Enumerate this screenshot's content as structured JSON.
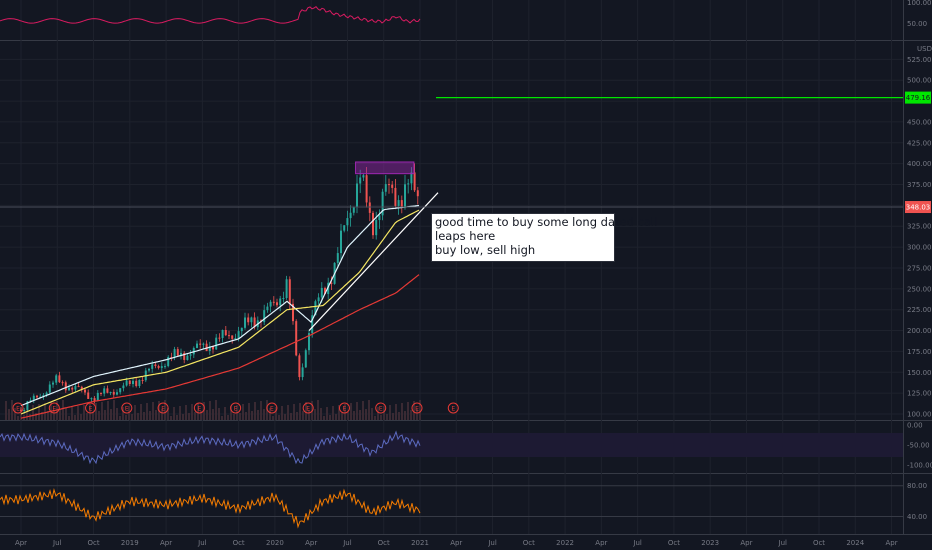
{
  "colors": {
    "background": "#131722",
    "grid": "#1e222d",
    "separator": "#363a45",
    "axis_text": "#787b86",
    "price_candle_up": "#26a69a",
    "price_candle_down": "#ef5350",
    "ma_fast": "#e1f5fe",
    "ma_mid": "#f5e663",
    "ma_slow": "#e53935",
    "trendline": "#ffffff",
    "target_line": "#00e600",
    "rect_zone": "#9c27b0",
    "pane_top": "#d81b60",
    "pane_williams": "#5c6bc0",
    "pane_rsi": "#f57c00",
    "earnings": "#e53935"
  },
  "annotation": {
    "lines": [
      "good time to buy some long dated call",
      "leaps here",
      "buy low, sell high"
    ]
  },
  "chart_data": [
    {
      "type": "line",
      "pane": "top-oscillator",
      "y_ticks": [
        "100.00",
        "50.00"
      ],
      "x": [
        "2020-03",
        "2020-04",
        "2020-05",
        "2020-06",
        "2020-07",
        "2020-08",
        "2020-09",
        "2020-10",
        "2020-11",
        "2020-12",
        "2021-01"
      ],
      "values": [
        82,
        96,
        90,
        78,
        72,
        66,
        60,
        58,
        72,
        58,
        62
      ]
    },
    {
      "type": "candlestick",
      "pane": "price",
      "currency": "USD",
      "y_ticks": [
        "525.00",
        "500.00",
        "475.00",
        "450.00",
        "425.00",
        "400.00",
        "375.00",
        "350.00",
        "325.00",
        "300.00",
        "275.00",
        "250.00",
        "225.00",
        "200.00",
        "175.00",
        "150.00",
        "125.00",
        "100.00"
      ],
      "ylim": [
        100,
        535
      ],
      "x_ticks": [
        "Apr",
        "Jul",
        "Oct",
        "2019",
        "Apr",
        "Jul",
        "Oct",
        "2020",
        "Apr",
        "Jul",
        "Oct",
        "2021",
        "Apr",
        "Jul",
        "Oct",
        "2022",
        "Apr",
        "Jul",
        "Oct",
        "2023",
        "Apr",
        "Jul",
        "Oct",
        "2024",
        "Apr"
      ],
      "close_series": {
        "x": [
          "2018-04",
          "2018-07",
          "2018-10",
          "2019-01",
          "2019-04",
          "2019-07",
          "2019-10",
          "2020-01",
          "2020-02",
          "2020-03",
          "2020-04",
          "2020-06",
          "2020-08",
          "2020-09",
          "2020-10",
          "2020-11",
          "2020-12",
          "2021-01"
        ],
        "values": [
          105,
          140,
          120,
          135,
          165,
          180,
          200,
          230,
          260,
          140,
          215,
          280,
          390,
          320,
          370,
          355,
          380,
          348
        ]
      },
      "moving_averages": [
        {
          "x": [
            "2018-04",
            "2018-10",
            "2019-04",
            "2019-10",
            "2020-02",
            "2020-04",
            "2020-07",
            "2020-10",
            "2021-01"
          ],
          "values": [
            110,
            145,
            165,
            190,
            235,
            210,
            300,
            345,
            350
          ]
        },
        {
          "x": [
            "2018-04",
            "2018-10",
            "2019-04",
            "2019-10",
            "2020-02",
            "2020-05",
            "2020-08",
            "2020-11",
            "2021-01"
          ],
          "values": [
            100,
            135,
            150,
            180,
            225,
            230,
            270,
            330,
            345
          ]
        },
        {
          "x": [
            "2018-04",
            "2018-10",
            "2019-04",
            "2019-10",
            "2020-04",
            "2020-08",
            "2020-11",
            "2021-01"
          ],
          "values": [
            95,
            115,
            130,
            155,
            195,
            225,
            245,
            268
          ]
        }
      ],
      "horizontal_lines": [
        {
          "label": "479.16",
          "value": 479.16
        },
        {
          "label": "348.03",
          "value": 348.03
        }
      ],
      "trendline": {
        "x": [
          "2020-03",
          "2021-01"
        ],
        "values": [
          200,
          370
        ]
      },
      "zone": {
        "x": [
          "2020-08",
          "2020-12"
        ],
        "y": [
          388,
          402
        ]
      },
      "earnings_marker": "E",
      "earnings_dates": [
        "2018-04",
        "2018-07",
        "2018-10",
        "2019-01",
        "2019-04",
        "2019-07",
        "2019-10",
        "2020-01",
        "2020-04",
        "2020-07",
        "2020-10",
        "2021-01",
        "2021-04"
      ]
    },
    {
      "type": "line",
      "pane": "williams",
      "y_ticks": [
        "0.00",
        "-50.00",
        "-100.00"
      ],
      "ylim": [
        -100,
        0
      ],
      "x": [
        "2018-04",
        "2018-07",
        "2018-10",
        "2019-01",
        "2019-04",
        "2019-07",
        "2019-10",
        "2020-01",
        "2020-03",
        "2020-05",
        "2020-07",
        "2020-09",
        "2020-11",
        "2021-01"
      ],
      "values": [
        -30,
        -45,
        -90,
        -40,
        -55,
        -35,
        -50,
        -30,
        -95,
        -40,
        -30,
        -70,
        -25,
        -50
      ]
    },
    {
      "type": "line",
      "pane": "rsi",
      "y_ticks": [
        "80.00",
        "40.00"
      ],
      "x": [
        "2018-04",
        "2018-07",
        "2018-10",
        "2019-01",
        "2019-04",
        "2019-07",
        "2019-10",
        "2020-01",
        "2020-03",
        "2020-05",
        "2020-07",
        "2020-09",
        "2020-11",
        "2021-01"
      ],
      "values": [
        62,
        70,
        38,
        60,
        55,
        64,
        50,
        66,
        30,
        60,
        70,
        45,
        58,
        48
      ]
    }
  ]
}
